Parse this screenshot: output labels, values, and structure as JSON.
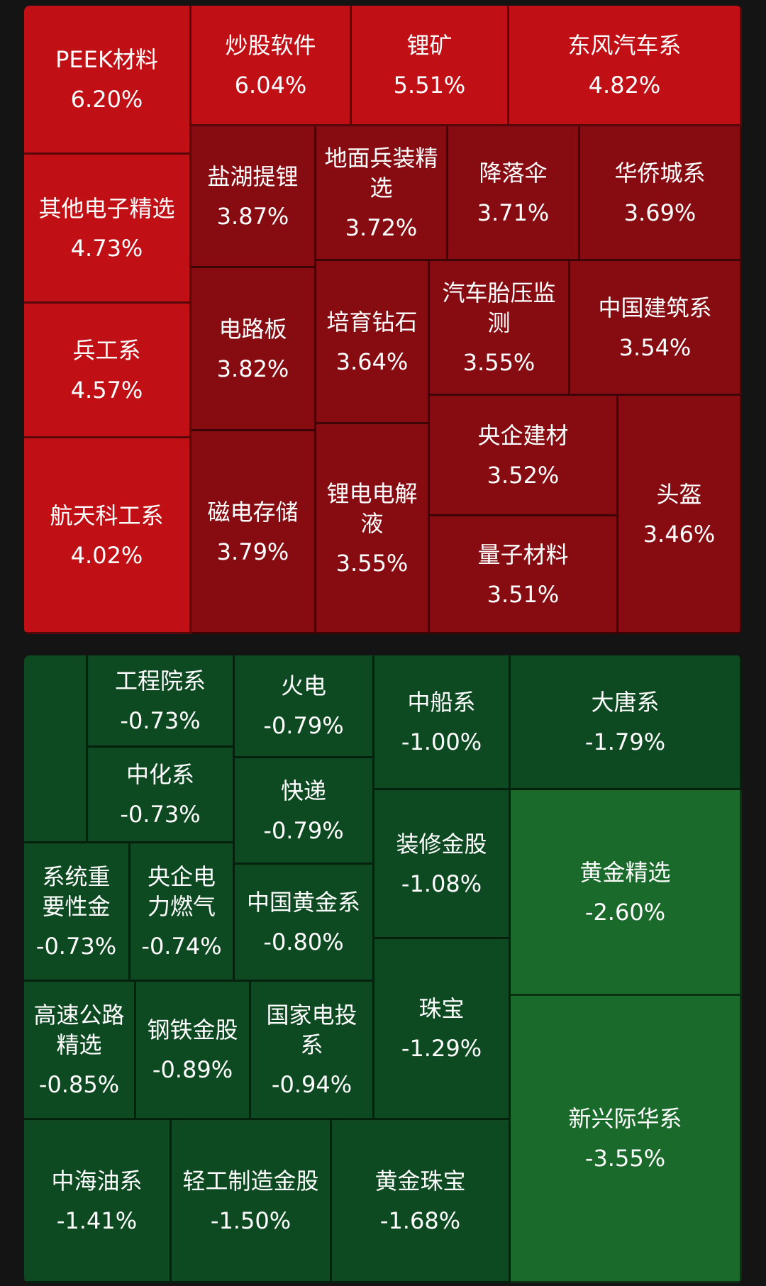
{
  "chart_data": [
    {
      "type": "treemap",
      "colors": {
        "bright_red": "#c00f15",
        "dark_red": "#860c12",
        "dark_green": "#0d4a21",
        "bright_green": "#1a6a2b"
      },
      "series": [
        {
          "name": "PEEK材料",
          "value": 6.2,
          "label": "6.20%"
        },
        {
          "name": "炒股软件",
          "value": 6.04,
          "label": "6.04%"
        },
        {
          "name": "锂矿",
          "value": 5.51,
          "label": "5.51%"
        },
        {
          "name": "东风汽车系",
          "value": 4.82,
          "label": "4.82%"
        },
        {
          "name": "其他电子精选",
          "value": 4.73,
          "label": "4.73%"
        },
        {
          "name": "兵工系",
          "value": 4.57,
          "label": "4.57%"
        },
        {
          "name": "航天科工系",
          "value": 4.02,
          "label": "4.02%"
        },
        {
          "name": "盐湖提锂",
          "value": 3.87,
          "label": "3.87%"
        },
        {
          "name": "地面兵装精选",
          "value": 3.72,
          "label": "3.72%"
        },
        {
          "name": "降落伞",
          "value": 3.71,
          "label": "3.71%"
        },
        {
          "name": "华侨城系",
          "value": 3.69,
          "label": "3.69%"
        },
        {
          "name": "电路板",
          "value": 3.82,
          "label": "3.82%"
        },
        {
          "name": "培育钻石",
          "value": 3.64,
          "label": "3.64%"
        },
        {
          "name": "汽车胎压监测",
          "value": 3.55,
          "label": "3.55%"
        },
        {
          "name": "中国建筑系",
          "value": 3.54,
          "label": "3.54%"
        },
        {
          "name": "磁电存储",
          "value": 3.79,
          "label": "3.79%"
        },
        {
          "name": "锂电电解液",
          "value": 3.55,
          "label": "3.55%"
        },
        {
          "name": "央企建材",
          "value": 3.52,
          "label": "3.52%"
        },
        {
          "name": "量子材料",
          "value": 3.51,
          "label": "3.51%"
        },
        {
          "name": "头盔",
          "value": 3.46,
          "label": "3.46%"
        }
      ]
    },
    {
      "type": "treemap",
      "series": [
        {
          "name": "",
          "value": null,
          "label": ""
        },
        {
          "name": "工程院系",
          "value": -0.73,
          "label": "-0.73%"
        },
        {
          "name": "中化系",
          "value": -0.73,
          "label": "-0.73%"
        },
        {
          "name": "火电",
          "value": -0.79,
          "label": "-0.79%"
        },
        {
          "name": "快递",
          "value": -0.79,
          "label": "-0.79%"
        },
        {
          "name": "中船系",
          "value": -1.0,
          "label": "-1.00%"
        },
        {
          "name": "大唐系",
          "value": -1.79,
          "label": "-1.79%"
        },
        {
          "name": "系统重要性金",
          "value": -0.73,
          "label": "-0.73%"
        },
        {
          "name": "央企电力燃气",
          "value": -0.74,
          "label": "-0.74%"
        },
        {
          "name": "中国黄金系",
          "value": -0.8,
          "label": "-0.80%"
        },
        {
          "name": "装修金股",
          "value": -1.08,
          "label": "-1.08%"
        },
        {
          "name": "黄金精选",
          "value": -2.6,
          "label": "-2.60%"
        },
        {
          "name": "高速公路精选",
          "value": -0.85,
          "label": "-0.85%"
        },
        {
          "name": "钢铁金股",
          "value": -0.89,
          "label": "-0.89%"
        },
        {
          "name": "国家电投系",
          "value": -0.94,
          "label": "-0.94%"
        },
        {
          "name": "珠宝",
          "value": -1.29,
          "label": "-1.29%"
        },
        {
          "name": "中海油系",
          "value": -1.41,
          "label": "-1.41%"
        },
        {
          "name": "轻工制造金股",
          "value": -1.5,
          "label": "-1.50%"
        },
        {
          "name": "黄金珠宝",
          "value": -1.68,
          "label": "-1.68%"
        },
        {
          "name": "新兴际华系",
          "value": -3.55,
          "label": "-3.55%"
        }
      ]
    }
  ]
}
